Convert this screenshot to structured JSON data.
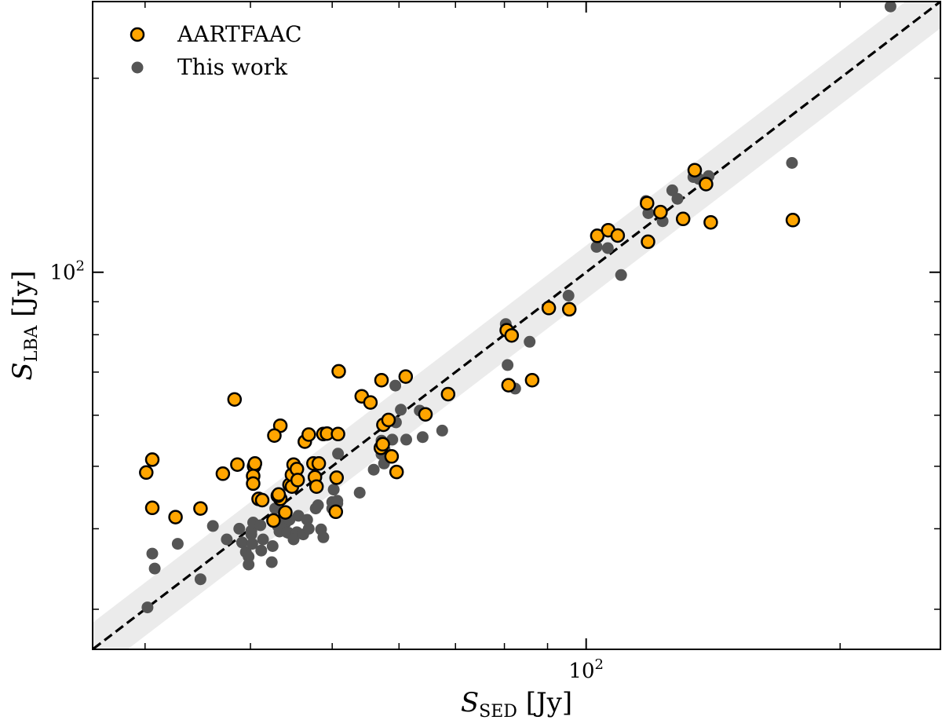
{
  "chart_data": {
    "type": "scatter",
    "title": "",
    "xlabel": {
      "main": "S",
      "sub": "SED",
      "unit": "[Jy]"
    },
    "ylabel": {
      "main": "S",
      "sub": "LBA",
      "unit": "[Jy]"
    },
    "xscale": "log",
    "yscale": "log",
    "xlim": [
      26,
      263
    ],
    "ylim": [
      26,
      263
    ],
    "grid": false,
    "legend_position": "top-left",
    "x_ticks": [
      {
        "value": 100,
        "base": "10",
        "exp": "2"
      }
    ],
    "y_ticks": [
      {
        "value": 100,
        "base": "10",
        "exp": "2"
      }
    ],
    "reference_line": {
      "label": "1:1",
      "style": "dashed",
      "color": "#000000",
      "band_factor": 1.1,
      "band_color": "#ebebeb"
    },
    "series": [
      {
        "name": "AARTFAAC",
        "color": "#ffa500",
        "edge_color": "#000000",
        "points": [
          [
            30.1,
            48.9
          ],
          [
            30.6,
            51.2
          ],
          [
            30.6,
            43.1
          ],
          [
            32.6,
            41.7
          ],
          [
            34.9,
            43.0
          ],
          [
            38.3,
            63.5
          ],
          [
            37.1,
            48.7
          ],
          [
            38.6,
            50.3
          ],
          [
            40.4,
            50.0
          ],
          [
            40.3,
            48.3
          ],
          [
            40.3,
            47.0
          ],
          [
            40.5,
            50.5
          ],
          [
            40.9,
            44.5
          ],
          [
            41.3,
            44.3
          ],
          [
            42.6,
            41.2
          ],
          [
            43.4,
            57.8
          ],
          [
            42.7,
            55.8
          ],
          [
            43.4,
            44.5
          ],
          [
            43.1,
            45.0
          ],
          [
            43.2,
            45.2
          ],
          [
            44.5,
            46.8
          ],
          [
            44.8,
            48.5
          ],
          [
            45.0,
            50.3
          ],
          [
            45.4,
            49.5
          ],
          [
            44.8,
            46.5
          ],
          [
            45.5,
            47.6
          ],
          [
            44.0,
            42.4
          ],
          [
            46.4,
            54.6
          ],
          [
            46.9,
            56.0
          ],
          [
            47.5,
            50.5
          ],
          [
            47.7,
            48.1
          ],
          [
            48.2,
            50.5
          ],
          [
            47.9,
            46.5
          ],
          [
            48.8,
            56.1
          ],
          [
            49.3,
            56.2
          ],
          [
            50.9,
            70.2
          ],
          [
            50.8,
            56.1
          ],
          [
            50.5,
            42.5
          ],
          [
            50.6,
            48.0
          ],
          [
            54.2,
            64.2
          ],
          [
            55.5,
            62.8
          ],
          [
            57.2,
            68.0
          ],
          [
            57.5,
            58.0
          ],
          [
            57.1,
            53.4
          ],
          [
            57.4,
            54.1
          ],
          [
            58.3,
            59.0
          ],
          [
            58.8,
            51.8
          ],
          [
            59.6,
            49.0
          ],
          [
            61.1,
            68.9
          ],
          [
            64.5,
            60.2
          ],
          [
            68.6,
            64.7
          ],
          [
            80.5,
            81.3
          ],
          [
            80.9,
            66.8
          ],
          [
            81.6,
            79.8
          ],
          [
            86.3,
            68.0
          ],
          [
            90.3,
            88.0
          ],
          [
            95.5,
            87.6
          ],
          [
            103.1,
            113.9
          ],
          [
            106.2,
            116.2
          ],
          [
            109.0,
            114.0
          ],
          [
            118.1,
            128.0
          ],
          [
            118.4,
            111.5
          ],
          [
            122.5,
            124.0
          ],
          [
            130.3,
            121.0
          ],
          [
            134.5,
            144.0
          ],
          [
            138.7,
            137.0
          ],
          [
            140.5,
            119.5
          ],
          [
            175.8,
            120.5
          ]
        ]
      },
      {
        "name": "This work",
        "color": "#555555",
        "edge_color": "#555555",
        "points": [
          [
            30.2,
            30.2
          ],
          [
            30.6,
            36.6
          ],
          [
            30.8,
            34.7
          ],
          [
            32.8,
            37.9
          ],
          [
            34.9,
            33.4
          ],
          [
            36.1,
            40.4
          ],
          [
            37.5,
            38.5
          ],
          [
            38.8,
            40.0
          ],
          [
            39.1,
            38.1
          ],
          [
            39.5,
            36.8
          ],
          [
            40.1,
            39.7
          ],
          [
            39.8,
            36.2
          ],
          [
            39.8,
            35.2
          ],
          [
            40.2,
            37.9
          ],
          [
            40.3,
            40.9
          ],
          [
            40.1,
            39.2
          ],
          [
            41.4,
            38.5
          ],
          [
            41.2,
            37.0
          ],
          [
            41.1,
            40.5
          ],
          [
            42.4,
            35.5
          ],
          [
            42.5,
            37.6
          ],
          [
            42.8,
            43.0
          ],
          [
            43.1,
            40.4
          ],
          [
            43.3,
            39.6
          ],
          [
            43.5,
            41.0
          ],
          [
            43.6,
            41.4
          ],
          [
            43.8,
            42.0
          ],
          [
            44.0,
            40.8
          ],
          [
            44.2,
            39.5
          ],
          [
            44.5,
            41.3
          ],
          [
            44.4,
            39.4
          ],
          [
            45.4,
            39.5
          ],
          [
            45.0,
            38.5
          ],
          [
            45.6,
            41.9
          ],
          [
            46.2,
            39.2
          ],
          [
            46.7,
            41.3
          ],
          [
            46.9,
            40.0
          ],
          [
            47.8,
            43.0
          ],
          [
            48.1,
            43.5
          ],
          [
            48.5,
            39.9
          ],
          [
            48.8,
            38.8
          ],
          [
            50.0,
            44.0
          ],
          [
            50.0,
            43.0
          ],
          [
            50.2,
            46.0
          ],
          [
            50.7,
            43.8
          ],
          [
            50.7,
            44.2
          ],
          [
            50.8,
            52.3
          ],
          [
            53.9,
            45.5
          ],
          [
            56.0,
            49.4
          ],
          [
            57.2,
            52.2
          ],
          [
            57.2,
            54.8
          ],
          [
            57.6,
            50.5
          ],
          [
            57.7,
            53.0
          ],
          [
            58.9,
            55.0
          ],
          [
            59.4,
            66.7
          ],
          [
            59.5,
            58.5
          ],
          [
            60.3,
            61.2
          ],
          [
            61.2,
            55.0
          ],
          [
            63.5,
            61.0
          ],
          [
            64.0,
            55.5
          ],
          [
            67.5,
            56.8
          ],
          [
            80.3,
            83.1
          ],
          [
            80.7,
            71.8
          ],
          [
            82.4,
            66.0
          ],
          [
            85.7,
            78.0
          ],
          [
            95.3,
            92.0
          ],
          [
            102.9,
            109.5
          ],
          [
            106.1,
            109.0
          ],
          [
            110.0,
            99.0
          ],
          [
            117.7,
            129.0
          ],
          [
            118.5,
            123.5
          ],
          [
            123.2,
            120.0
          ],
          [
            126.5,
            134.0
          ],
          [
            128.3,
            130.0
          ],
          [
            134.0,
            140.5
          ],
          [
            136.0,
            139.6
          ],
          [
            139.7,
            141.0
          ],
          [
            175.4,
            147.8
          ],
          [
            229.5,
            258.5
          ]
        ]
      }
    ]
  }
}
